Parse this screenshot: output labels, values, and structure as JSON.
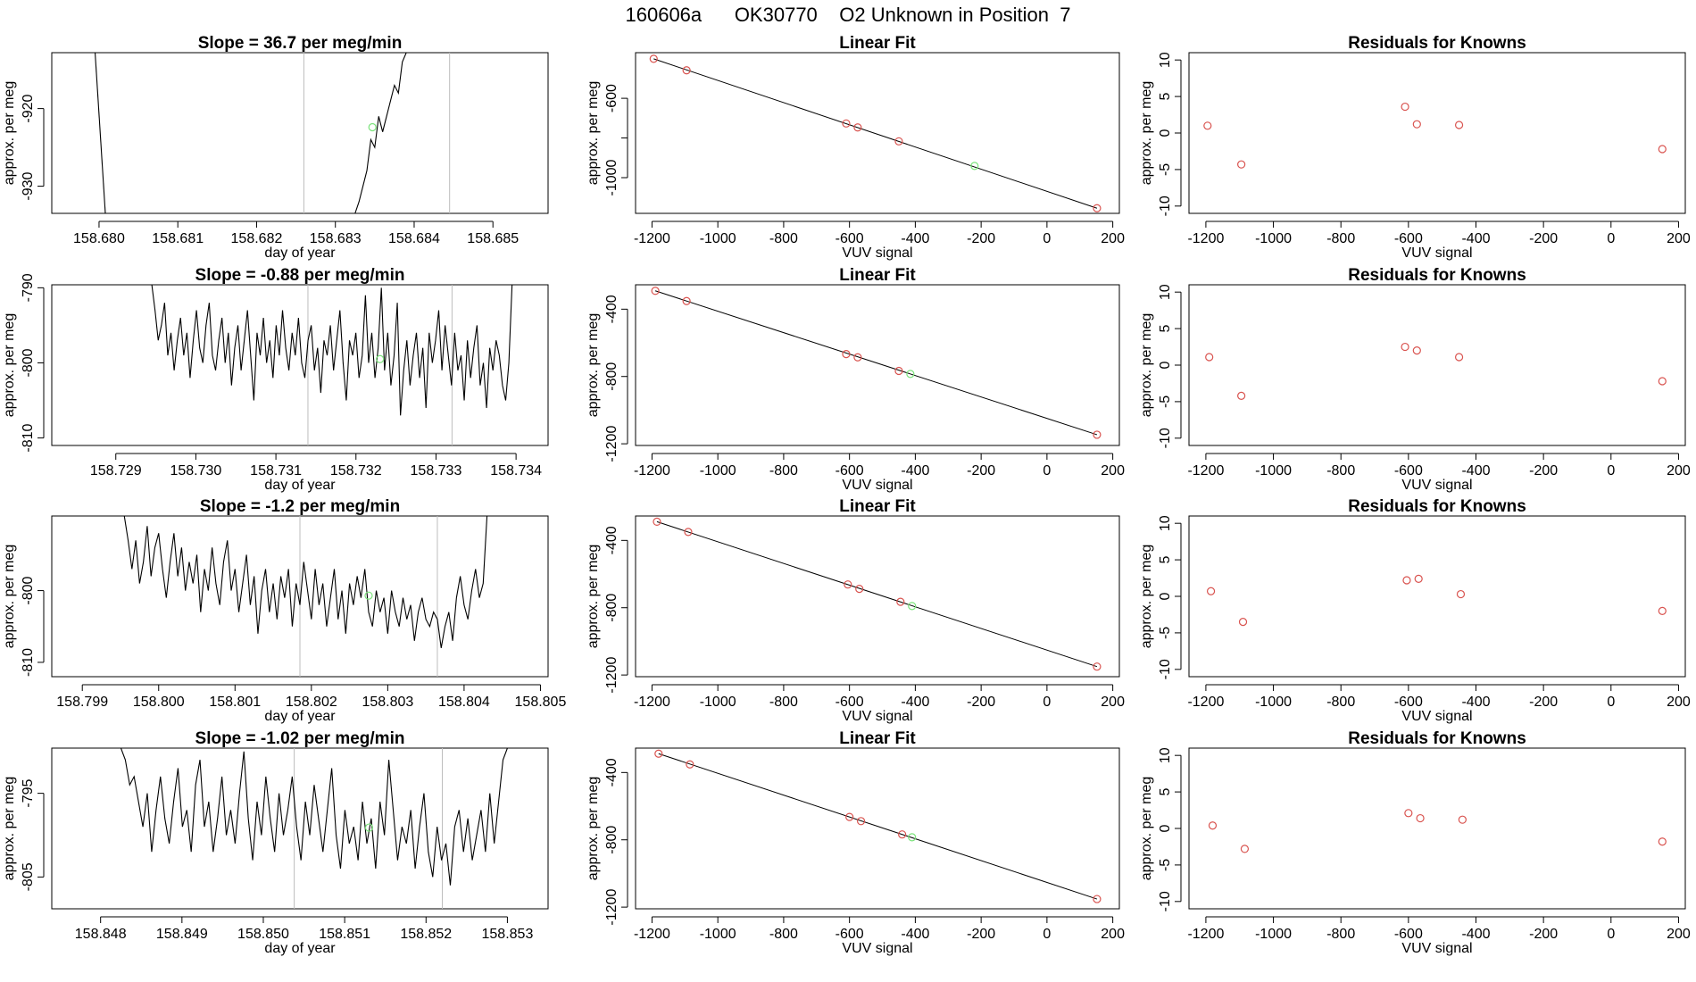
{
  "page": {
    "title": "160606a      OK30770    O2 Unknown in Position  7"
  },
  "colors": {
    "known": "#d9534f",
    "unknown": "#7be37b",
    "line": "#000000",
    "vline": "#bdbdbd"
  },
  "chart_data": [
    {
      "row": 0,
      "col": 0,
      "type": "line",
      "title": "Slope =  36.7  per meg/min",
      "xlabel": "day of year",
      "ylabel": "approx. per meg",
      "xlim": [
        158.6794,
        158.6857
      ],
      "ylim": [
        -933.5,
        -912.8
      ],
      "xticks": [
        158.68,
        158.681,
        158.682,
        158.683,
        158.684,
        158.685
      ],
      "xticklabels": [
        "158.680",
        "158.681",
        "158.682",
        "158.683",
        "158.684",
        "158.685"
      ],
      "yticks": [
        -930,
        -920
      ],
      "yticklabels": [
        "-930",
        "-920"
      ],
      "vlines": [
        158.6826,
        158.68445
      ],
      "segments": [
        [
          [
            158.67995,
            -912.8
          ],
          [
            158.68008,
            -933.5
          ]
        ],
        [
          [
            158.68325,
            -933.5
          ],
          [
            158.6833,
            -932
          ],
          [
            158.68335,
            -930
          ],
          [
            158.6834,
            -928
          ],
          [
            158.68345,
            -924
          ],
          [
            158.6835,
            -925
          ],
          [
            158.68355,
            -921
          ],
          [
            158.6836,
            -923
          ],
          [
            158.68365,
            -921
          ],
          [
            158.6837,
            -919
          ],
          [
            158.68375,
            -917
          ],
          [
            158.6838,
            -918
          ],
          [
            158.68385,
            -914
          ],
          [
            158.6839,
            -912.8
          ]
        ]
      ],
      "unknown_points": [
        {
          "x": 158.68347,
          "y": -922.4
        }
      ]
    },
    {
      "row": 0,
      "col": 1,
      "type": "scatter",
      "title": "Linear Fit",
      "xlabel": "VUV signal",
      "ylabel": "approx. per meg",
      "xlim": [
        -1250,
        220
      ],
      "ylim": [
        -1180,
        -370
      ],
      "xticks": [
        -1200,
        -1000,
        -800,
        -600,
        -400,
        -200,
        0,
        200
      ],
      "xticklabels": [
        "-1200",
        "-1000",
        "-800",
        "-600",
        "-400",
        "-200",
        "0",
        "200"
      ],
      "yticks": [
        -1000,
        -800,
        -600
      ],
      "yticklabels": [
        "-1000",
        "",
        "-600"
      ],
      "fit_line": [
        [
          -1195,
          -401
        ],
        [
          152,
          -1154
        ]
      ],
      "known": [
        {
          "x": -1195,
          "y": -401
        },
        {
          "x": -1095,
          "y": -459
        },
        {
          "x": -610,
          "y": -727
        },
        {
          "x": -575,
          "y": -747
        },
        {
          "x": -450,
          "y": -817
        },
        {
          "x": 152,
          "y": -1154
        }
      ],
      "unknown": [
        {
          "x": -220,
          "y": -941
        }
      ]
    },
    {
      "row": 0,
      "col": 2,
      "type": "scatter",
      "title": "Residuals for Knowns",
      "xlabel": "VUV signal",
      "ylabel": "approx. per meg",
      "xlim": [
        -1250,
        220
      ],
      "ylim": [
        -11,
        11
      ],
      "xticks": [
        -1200,
        -1000,
        -800,
        -600,
        -400,
        -200,
        0,
        200
      ],
      "xticklabels": [
        "-1200",
        "-1000",
        "-800",
        "-600",
        "-400",
        "-200",
        "0",
        "200"
      ],
      "yticks": [
        -10,
        -5,
        0,
        5,
        10
      ],
      "yticklabels": [
        "-10",
        "-5",
        "0",
        "5",
        "10"
      ],
      "known": [
        {
          "x": -1195,
          "y": 1.0
        },
        {
          "x": -1095,
          "y": -4.3
        },
        {
          "x": -610,
          "y": 3.6
        },
        {
          "x": -575,
          "y": 1.2
        },
        {
          "x": -450,
          "y": 1.1
        },
        {
          "x": 152,
          "y": -2.2
        }
      ]
    },
    {
      "row": 1,
      "col": 0,
      "type": "line",
      "title": "Slope =  -0.88  per meg/min",
      "xlabel": "day of year",
      "ylabel": "approx. per meg",
      "xlim": [
        158.7282,
        158.7344
      ],
      "ylim": [
        -811,
        -789.6
      ],
      "xticks": [
        158.729,
        158.73,
        158.731,
        158.732,
        158.733,
        158.734
      ],
      "xticklabels": [
        "158.729",
        "158.730",
        "158.731",
        "158.732",
        "158.733",
        "158.734"
      ],
      "yticks": [
        -810,
        -800,
        -790
      ],
      "yticklabels": [
        "-810",
        "-800",
        "-790"
      ],
      "vlines": [
        158.7314,
        158.7332
      ],
      "series_y": [
        -789.6,
        -793,
        -797,
        -795,
        -792,
        -799,
        -796,
        -801,
        -797,
        -794,
        -799,
        -796,
        -802,
        -797,
        -793,
        -798,
        -800,
        -795,
        -792,
        -799,
        -801,
        -797,
        -794,
        -800,
        -796,
        -803,
        -798,
        -795,
        -801,
        -797,
        -793,
        -799,
        -805,
        -796,
        -799,
        -794,
        -800,
        -797,
        -802,
        -795,
        -799,
        -793,
        -798,
        -801,
        -796,
        -799,
        -794,
        -800,
        -802,
        -797,
        -795,
        -801,
        -798,
        -804,
        -797,
        -799,
        -795,
        -801,
        -797,
        -793,
        -800,
        -805,
        -797,
        -799,
        -796,
        -802,
        -799,
        -791,
        -800,
        -796,
        -802,
        -798,
        -790,
        -801,
        -796,
        -803,
        -799,
        -792,
        -807,
        -801,
        -797,
        -803,
        -799,
        -796,
        -802,
        -798,
        -806,
        -796,
        -800,
        -797,
        -793,
        -801,
        -795,
        -799,
        -803,
        -796,
        -801,
        -799,
        -805,
        -797,
        -802,
        -798,
        -795,
        -803,
        -800,
        -806,
        -798,
        -801,
        -797,
        -799,
        -803,
        -805,
        -800,
        -789.6
      ],
      "series_x": [
        158.72945,
        158.73395
      ],
      "unknown_points": [
        {
          "x": 158.7323,
          "y": -799.5
        }
      ]
    },
    {
      "row": 1,
      "col": 1,
      "type": "scatter",
      "title": "Linear Fit",
      "xlabel": "VUV signal",
      "ylabel": "approx. per meg",
      "xlim": [
        -1250,
        220
      ],
      "ylim": [
        -1210,
        -255
      ],
      "xticks": [
        -1200,
        -1000,
        -800,
        -600,
        -400,
        -200,
        0,
        200
      ],
      "xticklabels": [
        "-1200",
        "-1000",
        "-800",
        "-600",
        "-400",
        "-200",
        "0",
        "200"
      ],
      "yticks": [
        -1200,
        -800,
        -400
      ],
      "yticklabels": [
        "-1200",
        "-800",
        "-400"
      ],
      "fit_line": [
        [
          -1190,
          -291
        ],
        [
          152,
          -1146
        ]
      ],
      "known": [
        {
          "x": -1190,
          "y": -291
        },
        {
          "x": -1095,
          "y": -352
        },
        {
          "x": -610,
          "y": -667
        },
        {
          "x": -575,
          "y": -686
        },
        {
          "x": -450,
          "y": -767
        },
        {
          "x": 152,
          "y": -1146
        }
      ],
      "unknown": [
        {
          "x": -415,
          "y": -785
        }
      ]
    },
    {
      "row": 1,
      "col": 2,
      "type": "scatter",
      "title": "Residuals for Knowns",
      "xlabel": "VUV signal",
      "ylabel": "approx. per meg",
      "xlim": [
        -1250,
        220
      ],
      "ylim": [
        -11,
        11
      ],
      "xticks": [
        -1200,
        -1000,
        -800,
        -600,
        -400,
        -200,
        0,
        200
      ],
      "xticklabels": [
        "-1200",
        "-1000",
        "-800",
        "-600",
        "-400",
        "-200",
        "0",
        "200"
      ],
      "yticks": [
        -10,
        -5,
        0,
        5,
        10
      ],
      "yticklabels": [
        "-10",
        "-5",
        "0",
        "5",
        "10"
      ],
      "known": [
        {
          "x": -1190,
          "y": 1.1
        },
        {
          "x": -1095,
          "y": -4.2
        },
        {
          "x": -610,
          "y": 2.5
        },
        {
          "x": -575,
          "y": 2.0
        },
        {
          "x": -450,
          "y": 1.1
        },
        {
          "x": 152,
          "y": -2.2
        }
      ]
    },
    {
      "row": 2,
      "col": 0,
      "type": "line",
      "title": "Slope =  -1.2  per meg/min",
      "xlabel": "day of year",
      "ylabel": "approx. per meg",
      "xlim": [
        158.7986,
        158.8051
      ],
      "ylim": [
        -812,
        -789.6
      ],
      "xticks": [
        158.799,
        158.8,
        158.801,
        158.802,
        158.803,
        158.804,
        158.805
      ],
      "xticklabels": [
        "158.799",
        "158.800",
        "158.801",
        "158.802",
        "158.803",
        "158.804",
        "158.805"
      ],
      "yticks": [
        -810,
        -800
      ],
      "yticklabels": [
        "-810",
        "-800"
      ],
      "vlines": [
        158.80185,
        158.80365
      ],
      "series_y": [
        -789.6,
        -793,
        -797,
        -793,
        -799,
        -796,
        -791,
        -798,
        -794,
        -792,
        -797,
        -801,
        -796,
        -792,
        -798,
        -794,
        -800,
        -796,
        -799,
        -795,
        -803,
        -797,
        -800,
        -794,
        -799,
        -802,
        -796,
        -793,
        -800,
        -797,
        -803,
        -799,
        -795,
        -802,
        -798,
        -806,
        -800,
        -797,
        -803,
        -799,
        -804,
        -798,
        -801,
        -797,
        -805,
        -799,
        -802,
        -796,
        -800,
        -804,
        -797,
        -802,
        -799,
        -805,
        -801,
        -797,
        -804,
        -800,
        -806,
        -799,
        -802,
        -798,
        -801,
        -797,
        -803,
        -805,
        -800,
        -803,
        -801,
        -806,
        -800,
        -803,
        -805,
        -801,
        -804,
        -802,
        -807,
        -803,
        -801,
        -804,
        -805,
        -803,
        -804,
        -808,
        -805,
        -803,
        -807,
        -801,
        -798,
        -802,
        -804,
        -800,
        -797,
        -801,
        -799,
        -789.6
      ],
      "series_x": [
        158.79955,
        158.8043
      ],
      "unknown_points": [
        {
          "x": 158.80275,
          "y": -800.7
        }
      ]
    },
    {
      "row": 2,
      "col": 1,
      "type": "scatter",
      "title": "Linear Fit",
      "xlabel": "VUV signal",
      "ylabel": "approx. per meg",
      "xlim": [
        -1250,
        220
      ],
      "ylim": [
        -1210,
        -255
      ],
      "xticks": [
        -1200,
        -1000,
        -800,
        -600,
        -400,
        -200,
        0,
        200
      ],
      "xticklabels": [
        "-1200",
        "-1000",
        "-800",
        "-600",
        "-400",
        "-200",
        "0",
        "200"
      ],
      "yticks": [
        -1200,
        -800,
        -400
      ],
      "yticklabels": [
        "-1200",
        "-800",
        "-400"
      ],
      "fit_line": [
        [
          -1185,
          -289
        ],
        [
          152,
          -1150
        ]
      ],
      "known": [
        {
          "x": -1185,
          "y": -289
        },
        {
          "x": -1090,
          "y": -350
        },
        {
          "x": -605,
          "y": -662
        },
        {
          "x": -570,
          "y": -688
        },
        {
          "x": -445,
          "y": -765
        },
        {
          "x": 152,
          "y": -1150
        }
      ],
      "unknown": [
        {
          "x": -410,
          "y": -790
        }
      ]
    },
    {
      "row": 2,
      "col": 2,
      "type": "scatter",
      "title": "Residuals for Knowns",
      "xlabel": "VUV signal",
      "ylabel": "approx. per meg",
      "xlim": [
        -1250,
        220
      ],
      "ylim": [
        -11,
        11
      ],
      "xticks": [
        -1200,
        -1000,
        -800,
        -600,
        -400,
        -200,
        0,
        200
      ],
      "xticklabels": [
        "-1200",
        "-1000",
        "-800",
        "-600",
        "-400",
        "-200",
        "0",
        "200"
      ],
      "yticks": [
        -10,
        -5,
        0,
        5,
        10
      ],
      "yticklabels": [
        "-10",
        "-5",
        "0",
        "5",
        "10"
      ],
      "known": [
        {
          "x": -1185,
          "y": 0.7
        },
        {
          "x": -1090,
          "y": -3.5
        },
        {
          "x": -605,
          "y": 2.2
        },
        {
          "x": -570,
          "y": 2.4
        },
        {
          "x": -445,
          "y": 0.3
        },
        {
          "x": 152,
          "y": -2.0
        }
      ]
    },
    {
      "row": 3,
      "col": 0,
      "type": "line",
      "title": "Slope =  -1.02  per meg/min",
      "xlabel": "day of year",
      "ylabel": "approx. per meg",
      "xlim": [
        158.8474,
        158.8535
      ],
      "ylim": [
        -808.8,
        -789.6
      ],
      "xticks": [
        158.848,
        158.849,
        158.85,
        158.851,
        158.852,
        158.853
      ],
      "xticklabels": [
        "158.848",
        "158.849",
        "158.850",
        "158.851",
        "158.852",
        "158.853"
      ],
      "yticks": [
        -805,
        -795
      ],
      "yticklabels": [
        "-805",
        "-795"
      ],
      "vlines": [
        158.85038,
        158.8522
      ],
      "series_y": [
        -789.6,
        -791,
        -794,
        -793,
        -796,
        -799,
        -795,
        -802,
        -797,
        -793,
        -798,
        -801,
        -796,
        -792,
        -799,
        -797,
        -802,
        -794,
        -791,
        -799,
        -796,
        -802,
        -798,
        -793,
        -800,
        -797,
        -801,
        -795,
        -790,
        -798,
        -803,
        -796,
        -800,
        -793,
        -798,
        -802,
        -795,
        -800,
        -797,
        -793,
        -799,
        -803,
        -796,
        -800,
        -794,
        -798,
        -802,
        -797,
        -792,
        -800,
        -804,
        -797,
        -801,
        -799,
        -803,
        -796,
        -801,
        -798,
        -804,
        -796,
        -800,
        -791,
        -797,
        -803,
        -799,
        -801,
        -797,
        -804,
        -799,
        -795,
        -802,
        -805,
        -799,
        -803,
        -801,
        -806,
        -799,
        -797,
        -802,
        -798,
        -803,
        -800,
        -797,
        -802,
        -795,
        -801,
        -796,
        -791,
        -789.6
      ],
      "series_x": [
        158.84825,
        158.853
      ],
      "unknown_points": [
        {
          "x": 158.8513,
          "y": -799.1
        }
      ]
    },
    {
      "row": 3,
      "col": 1,
      "type": "scatter",
      "title": "Linear Fit",
      "xlabel": "VUV signal",
      "ylabel": "approx. per meg",
      "xlim": [
        -1250,
        220
      ],
      "ylim": [
        -1210,
        -255
      ],
      "xticks": [
        -1200,
        -1000,
        -800,
        -600,
        -400,
        -200,
        0,
        200
      ],
      "xticklabels": [
        "-1200",
        "-1000",
        "-800",
        "-600",
        "-400",
        "-200",
        "0",
        "200"
      ],
      "yticks": [
        -1200,
        -800,
        -400
      ],
      "yticklabels": [
        "-1200",
        "-800",
        "-400"
      ],
      "fit_line": [
        [
          -1180,
          -288
        ],
        [
          152,
          -1152
        ]
      ],
      "known": [
        {
          "x": -1180,
          "y": -288
        },
        {
          "x": -1085,
          "y": -352
        },
        {
          "x": -600,
          "y": -664
        },
        {
          "x": -565,
          "y": -689
        },
        {
          "x": -440,
          "y": -768
        },
        {
          "x": 152,
          "y": -1152
        }
      ],
      "unknown": [
        {
          "x": -410,
          "y": -785
        }
      ]
    },
    {
      "row": 3,
      "col": 2,
      "type": "scatter",
      "title": "Residuals for Knowns",
      "xlabel": "VUV signal",
      "ylabel": "approx. per meg",
      "xlim": [
        -1250,
        220
      ],
      "ylim": [
        -11,
        11
      ],
      "xticks": [
        -1200,
        -1000,
        -800,
        -600,
        -400,
        -200,
        0,
        200
      ],
      "xticklabels": [
        "-1200",
        "-1000",
        "-800",
        "-600",
        "-400",
        "-200",
        "0",
        "200"
      ],
      "yticks": [
        -10,
        -5,
        0,
        5,
        10
      ],
      "yticklabels": [
        "-10",
        "-5",
        "0",
        "5",
        "10"
      ],
      "known": [
        {
          "x": -1180,
          "y": 0.4
        },
        {
          "x": -1085,
          "y": -2.8
        },
        {
          "x": -600,
          "y": 2.1
        },
        {
          "x": -565,
          "y": 1.4
        },
        {
          "x": -440,
          "y": 1.2
        },
        {
          "x": 152,
          "y": -1.8
        }
      ]
    }
  ]
}
